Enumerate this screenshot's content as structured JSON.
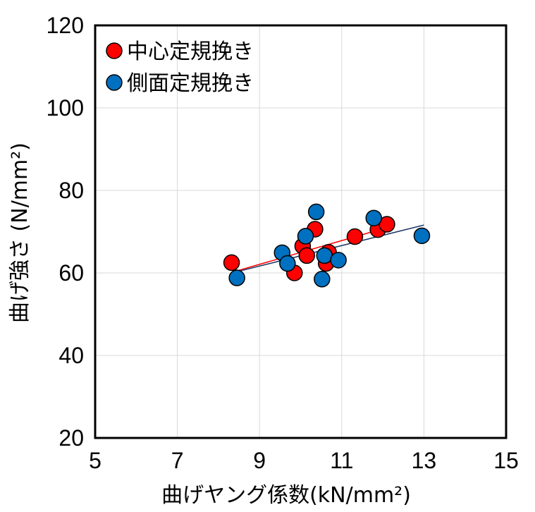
{
  "chart_data": {
    "type": "scatter",
    "xlabel": "曲げヤング係数(kN/mm²)",
    "ylabel": "曲げ強さ (N/mm²)",
    "xlim": [
      5,
      15
    ],
    "ylim": [
      20,
      120
    ],
    "xticks": [
      "5",
      "7",
      "9",
      "11",
      "13",
      "15"
    ],
    "yticks": [
      "20",
      "40",
      "60",
      "80",
      "100",
      "120"
    ],
    "grid": true,
    "legend_position": "top-left",
    "series": [
      {
        "name": "中心定規挽き",
        "color": "#ff0000",
        "points": [
          [
            8.32,
            62.5
          ],
          [
            9.85,
            60.0
          ],
          [
            10.05,
            66.5
          ],
          [
            10.15,
            64.2
          ],
          [
            10.35,
            70.6
          ],
          [
            10.62,
            62.3
          ],
          [
            10.68,
            65.0
          ],
          [
            11.32,
            68.8
          ],
          [
            11.88,
            70.5
          ],
          [
            12.1,
            71.8
          ]
        ],
        "trend": [
          [
            8.45,
            60.5
          ],
          [
            12.1,
            71.0
          ]
        ]
      },
      {
        "name": "側面定規挽き",
        "color": "#0070c0",
        "points": [
          [
            8.45,
            58.8
          ],
          [
            9.55,
            64.9
          ],
          [
            9.68,
            62.3
          ],
          [
            10.12,
            68.9
          ],
          [
            10.38,
            74.8
          ],
          [
            10.52,
            58.5
          ],
          [
            10.58,
            64.2
          ],
          [
            10.92,
            63.1
          ],
          [
            11.78,
            73.3
          ],
          [
            12.95,
            69.0
          ]
        ],
        "trend": [
          [
            8.45,
            60.3
          ],
          [
            13.0,
            71.6
          ]
        ]
      }
    ]
  }
}
